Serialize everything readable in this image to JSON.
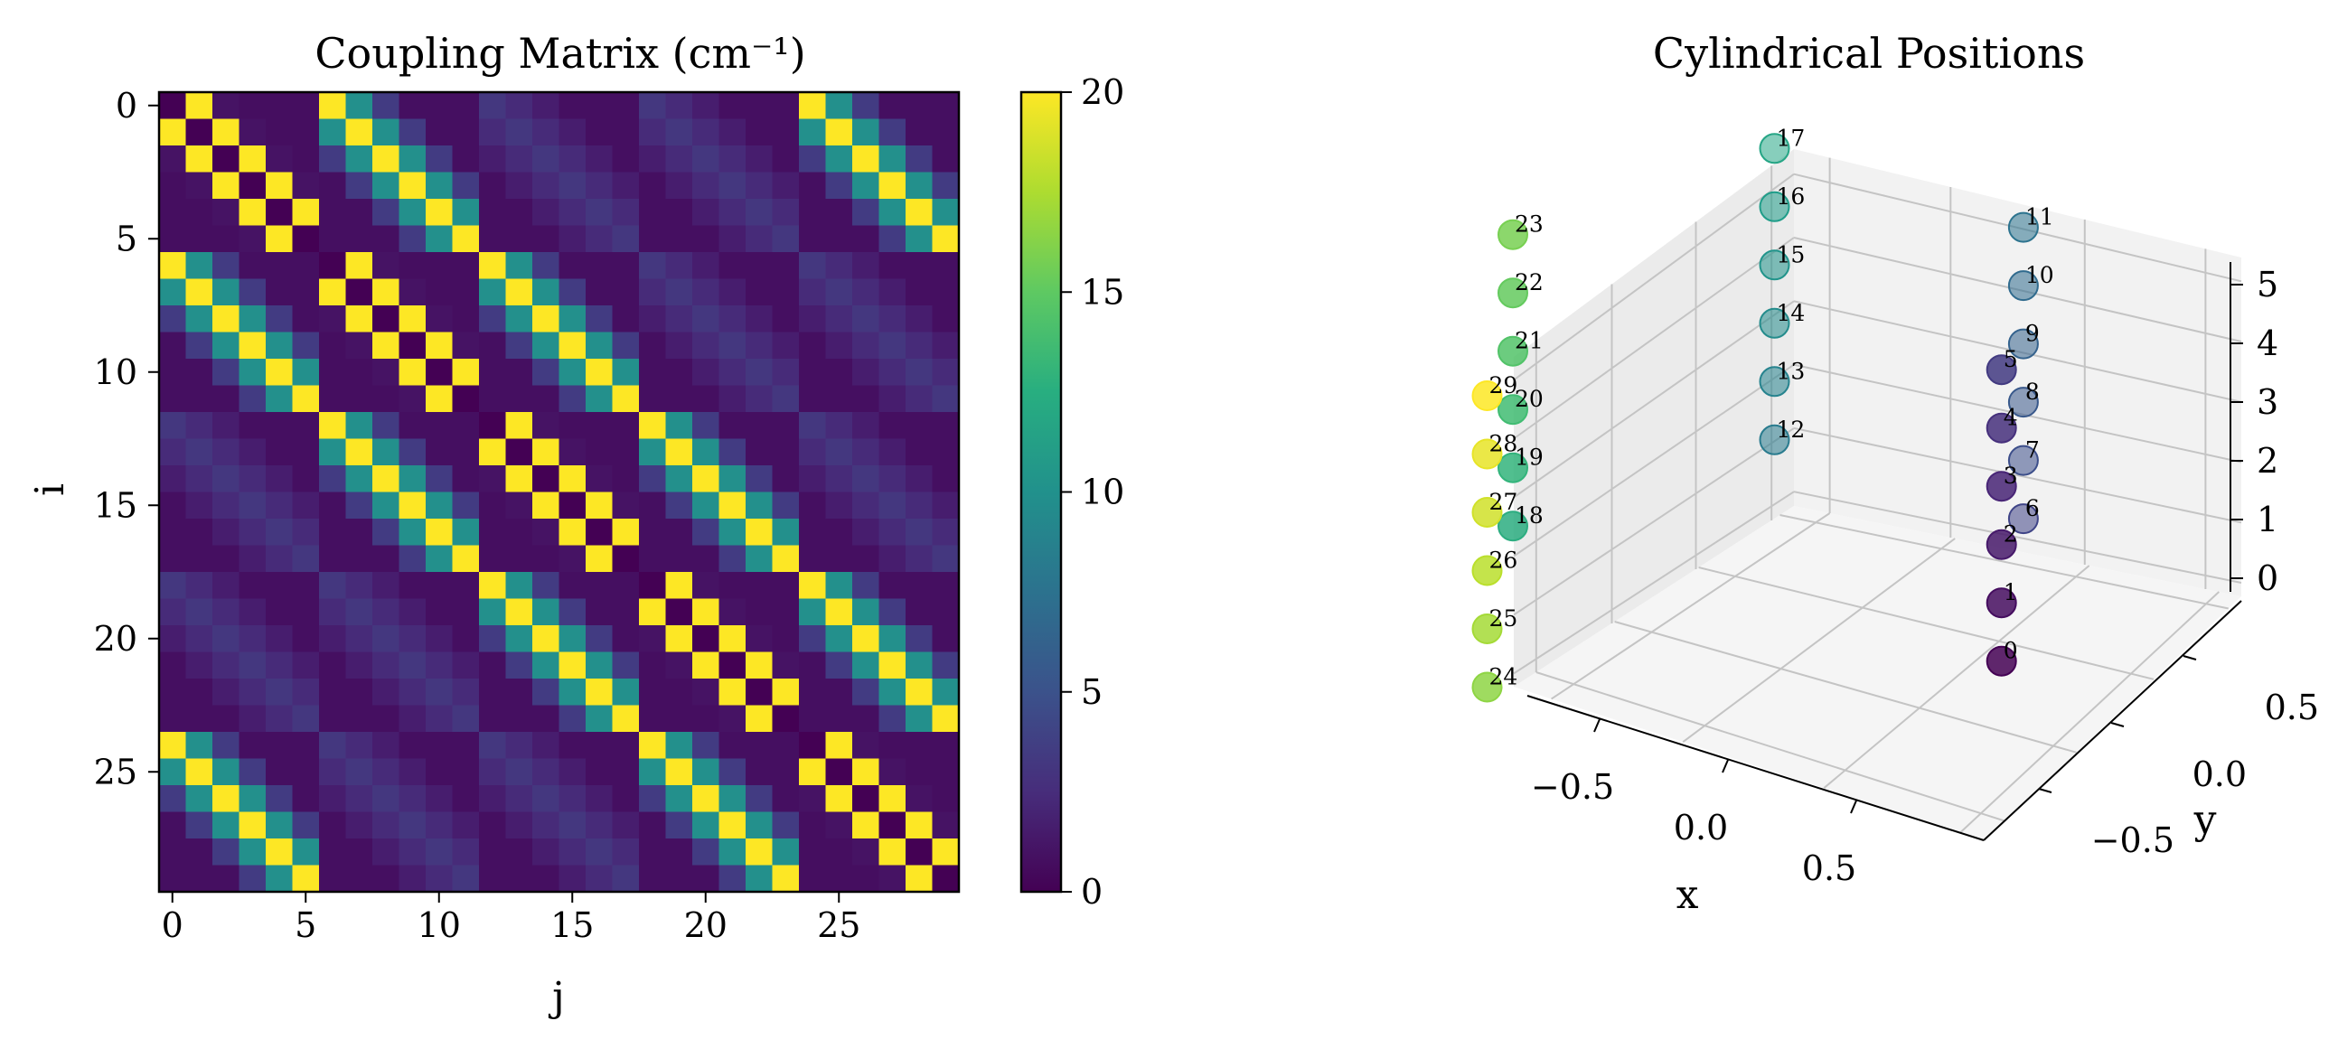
{
  "figure": {
    "panels": [
      "Coupling Matrix (cm⁻¹)",
      "Cylindrical Positions"
    ]
  },
  "chart_data": [
    {
      "type": "heatmap",
      "title": "Coupling Matrix (cm⁻¹)",
      "xlabel": "j",
      "ylabel": "i",
      "n": 30,
      "x_ticks": [
        0,
        5,
        10,
        15,
        20,
        25
      ],
      "y_ticks": [
        0,
        5,
        10,
        15,
        20,
        25
      ],
      "colormap": "viridis",
      "colorbar": {
        "range": [
          0,
          20
        ],
        "ticks": [
          0,
          5,
          10,
          15,
          20
        ]
      },
      "structure": {
        "rings": 5,
        "sites_per_ring": 6,
        "intra_ring_neighbor": 20,
        "inter_ring_same_position": 20,
        "intra_ring_second_neighbor": 1.0,
        "inter_ring_neighbor": 10,
        "inter_ring_second_neighbor": 3.5,
        "background": 0.8
      }
    },
    {
      "type": "scatter",
      "title": "Cylindrical Positions",
      "projection": "3d",
      "xlabel": "x",
      "ylabel": "y",
      "zlabel": "",
      "x_ticks": [
        "−0.5",
        "0.0",
        "0.5"
      ],
      "y_ticks": [
        "−0.5",
        "0.0",
        "0.5"
      ],
      "z_ticks": [
        "0",
        "1",
        "2",
        "3",
        "4",
        "5"
      ],
      "colormap": "viridis",
      "points": [
        {
          "label": "0",
          "x": 0.9,
          "y": 0.1,
          "z": 0
        },
        {
          "label": "1",
          "x": 0.9,
          "y": 0.1,
          "z": 1
        },
        {
          "label": "2",
          "x": 0.9,
          "y": 0.1,
          "z": 2
        },
        {
          "label": "3",
          "x": 0.9,
          "y": 0.1,
          "z": 3
        },
        {
          "label": "4",
          "x": 0.9,
          "y": 0.1,
          "z": 4
        },
        {
          "label": "5",
          "x": 0.9,
          "y": 0.1,
          "z": 5
        },
        {
          "label": "6",
          "x": 0.5,
          "y": 0.85,
          "z": 0
        },
        {
          "label": "7",
          "x": 0.5,
          "y": 0.85,
          "z": 1
        },
        {
          "label": "8",
          "x": 0.5,
          "y": 0.85,
          "z": 2
        },
        {
          "label": "9",
          "x": 0.5,
          "y": 0.85,
          "z": 3
        },
        {
          "label": "10",
          "x": 0.5,
          "y": 0.85,
          "z": 4
        },
        {
          "label": "11",
          "x": 0.5,
          "y": 0.85,
          "z": 5
        },
        {
          "label": "12",
          "x": -0.45,
          "y": 0.85,
          "z": 0
        },
        {
          "label": "13",
          "x": -0.45,
          "y": 0.85,
          "z": 1
        },
        {
          "label": "14",
          "x": -0.45,
          "y": 0.85,
          "z": 2
        },
        {
          "label": "15",
          "x": -0.45,
          "y": 0.85,
          "z": 3
        },
        {
          "label": "16",
          "x": -0.45,
          "y": 0.85,
          "z": 4
        },
        {
          "label": "17",
          "x": -0.45,
          "y": 0.85,
          "z": 5
        },
        {
          "label": "18",
          "x": -0.9,
          "y": 0.0,
          "z": 0
        },
        {
          "label": "19",
          "x": -0.9,
          "y": 0.0,
          "z": 1
        },
        {
          "label": "20",
          "x": -0.9,
          "y": 0.0,
          "z": 2
        },
        {
          "label": "21",
          "x": -0.9,
          "y": 0.0,
          "z": 3
        },
        {
          "label": "22",
          "x": -0.9,
          "y": 0.0,
          "z": 4
        },
        {
          "label": "23",
          "x": -0.9,
          "y": 0.0,
          "z": 5
        },
        {
          "label": "24",
          "x": -0.45,
          "y": -0.85,
          "z": 0
        },
        {
          "label": "25",
          "x": -0.45,
          "y": -0.85,
          "z": 1
        },
        {
          "label": "26",
          "x": -0.45,
          "y": -0.85,
          "z": 2
        },
        {
          "label": "27",
          "x": -0.45,
          "y": -0.85,
          "z": 3
        },
        {
          "label": "28",
          "x": -0.45,
          "y": -0.85,
          "z": 4
        },
        {
          "label": "29",
          "x": -0.45,
          "y": -0.85,
          "z": 5
        }
      ]
    }
  ]
}
